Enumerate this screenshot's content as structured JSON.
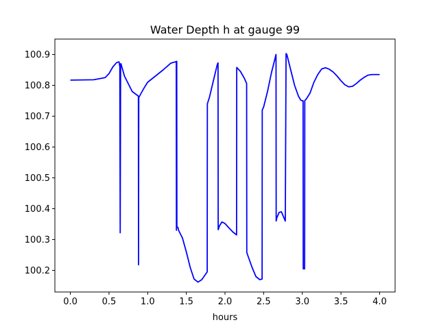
{
  "chart_data": {
    "type": "line",
    "title": "Water Depth h at gauge 99",
    "xlabel": "hours",
    "ylabel": "",
    "xlim": [
      -0.2,
      4.2
    ],
    "ylim": [
      100.13,
      100.95
    ],
    "xticks": [
      0.0,
      0.5,
      1.0,
      1.5,
      2.0,
      2.5,
      3.0,
      3.5,
      4.0
    ],
    "xtick_labels": [
      "0.0",
      "0.5",
      "1.0",
      "1.5",
      "2.0",
      "2.5",
      "3.0",
      "3.5",
      "4.0"
    ],
    "yticks": [
      100.2,
      100.3,
      100.4,
      100.5,
      100.6,
      100.7,
      100.8,
      100.9
    ],
    "ytick_labels": [
      "100.2",
      "100.3",
      "100.4",
      "100.5",
      "100.6",
      "100.7",
      "100.8",
      "100.9"
    ],
    "grid": false,
    "series": [
      {
        "color": "#0000ff",
        "x": [
          0.0,
          0.3,
          0.45,
          0.5,
          0.55,
          0.6,
          0.63,
          0.64,
          0.645,
          0.65,
          0.655,
          0.66,
          0.7,
          0.8,
          0.88,
          0.882,
          0.885,
          0.889,
          0.895,
          0.95,
          1.0,
          1.1,
          1.2,
          1.3,
          1.37,
          1.372,
          1.374,
          1.376,
          1.378,
          1.39,
          1.395,
          1.4,
          1.45,
          1.5,
          1.55,
          1.6,
          1.65,
          1.7,
          1.75,
          1.77,
          1.772,
          1.8,
          1.85,
          1.9,
          1.91,
          1.912,
          1.93,
          1.96,
          2.0,
          2.05,
          2.1,
          2.15,
          2.152,
          2.2,
          2.25,
          2.28,
          2.282,
          2.3,
          2.35,
          2.4,
          2.45,
          2.48,
          2.482,
          2.5,
          2.55,
          2.6,
          2.66,
          2.662,
          2.67,
          2.7,
          2.73,
          2.76,
          2.78,
          2.79,
          2.8,
          2.85,
          2.9,
          2.95,
          2.98,
          3.0,
          3.01,
          3.012,
          3.02,
          3.03,
          3.032,
          3.04,
          3.05,
          3.1,
          3.15,
          3.2,
          3.25,
          3.3,
          3.35,
          3.4,
          3.45,
          3.5,
          3.55,
          3.6,
          3.65,
          3.7,
          3.75,
          3.8,
          3.85,
          3.9,
          3.95,
          4.0
        ],
        "y": [
          100.817,
          100.818,
          100.825,
          100.838,
          100.86,
          100.874,
          100.876,
          100.86,
          100.322,
          100.87,
          100.87,
          100.865,
          100.83,
          100.78,
          100.765,
          100.218,
          100.762,
          100.762,
          100.765,
          100.79,
          100.81,
          100.83,
          100.85,
          100.872,
          100.877,
          100.33,
          100.877,
          100.878,
          100.34,
          100.34,
          100.335,
          100.33,
          100.305,
          100.26,
          100.21,
          100.172,
          100.162,
          100.17,
          100.188,
          100.195,
          100.74,
          100.762,
          100.815,
          100.867,
          100.873,
          100.332,
          100.345,
          100.357,
          100.352,
          100.338,
          100.325,
          100.315,
          100.858,
          100.845,
          100.823,
          100.806,
          100.258,
          100.245,
          100.21,
          100.18,
          100.17,
          100.172,
          100.72,
          100.73,
          100.78,
          100.84,
          100.9,
          100.36,
          100.37,
          100.388,
          100.39,
          100.372,
          100.36,
          100.903,
          100.9,
          100.85,
          100.8,
          100.765,
          100.752,
          100.75,
          100.75,
          100.205,
          100.205,
          100.205,
          100.75,
          100.753,
          100.755,
          100.775,
          100.81,
          100.835,
          100.853,
          100.857,
          100.852,
          100.843,
          100.83,
          100.815,
          100.802,
          100.795,
          100.797,
          100.806,
          100.817,
          100.826,
          100.833,
          100.835,
          100.835,
          100.835
        ]
      }
    ]
  }
}
